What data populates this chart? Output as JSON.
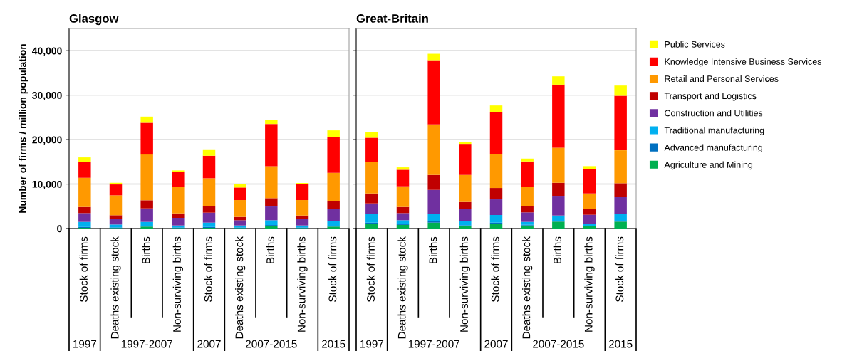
{
  "chart_data": [
    {
      "type": "bar",
      "stacked": true,
      "title": "Glasgow",
      "ylabel": "Number of firms / million population",
      "categories": [
        "Stock of firms",
        "Deaths existing stock",
        "Births",
        "Non-surviving births",
        "Stock of firms",
        "Deaths existing stock",
        "Births",
        "Non-surviving births",
        "Stock of firms"
      ],
      "annotations": [
        "1997",
        "1997-2007",
        "2007",
        "2007-2015",
        "2015"
      ],
      "series": [
        {
          "name": "Agriculture and Mining",
          "color": "#00b050",
          "values": [
            150,
            100,
            430,
            100,
            150,
            100,
            590,
            100,
            430
          ]
        },
        {
          "name": "Advanced manufacturing",
          "color": "#0070c0",
          "values": [
            200,
            150,
            200,
            150,
            200,
            150,
            200,
            150,
            200
          ]
        },
        {
          "name": "Traditional manufacturing",
          "color": "#00b0f0",
          "values": [
            1140,
            650,
            860,
            440,
            980,
            440,
            1080,
            440,
            1130
          ]
        },
        {
          "name": "Construction and Utilities",
          "color": "#7030a0",
          "values": [
            1980,
            1230,
            3040,
            1710,
            2240,
            1180,
            3090,
            1440,
            2670
          ]
        },
        {
          "name": "Transport and Logistics",
          "color": "#c00000",
          "values": [
            1380,
            860,
            1820,
            1010,
            1440,
            740,
            1870,
            800,
            1810
          ]
        },
        {
          "name": "Retail and Personal Services",
          "color": "#ff9900",
          "values": [
            6560,
            4480,
            10290,
            5980,
            6300,
            3790,
            7200,
            3470,
            6290
          ]
        },
        {
          "name": "Knowledge Intensive Business Services",
          "color": "#ff0000",
          "values": [
            3630,
            2450,
            7150,
            3300,
            5060,
            2830,
            9490,
            3570,
            8110
          ]
        },
        {
          "name": "Public Services",
          "color": "#ffff00",
          "values": [
            960,
            370,
            1380,
            380,
            1440,
            740,
            960,
            270,
            1440
          ]
        }
      ],
      "ylim": [
        0,
        45000
      ],
      "yticks": [
        0,
        {
          "value": 10000,
          "label": "10,000"
        },
        {
          "value": 20000,
          "label": "20,000"
        },
        {
          "value": 30000,
          "label": "30,000"
        },
        {
          "value": 40000,
          "label": "40,000"
        }
      ],
      "grid": "y",
      "legend": "right"
    },
    {
      "type": "bar",
      "stacked": true,
      "title": "Great-Britain",
      "categories": [
        "Stock of firms",
        "Deaths existing stock",
        "Births",
        "Non-surviving births",
        "Stock of firms",
        "Deaths existing stock",
        "Births",
        "Non-surviving births",
        "Stock of firms"
      ],
      "annotations": [
        "1997",
        "1997-2007",
        "2007",
        "2007-2015",
        "2015"
      ],
      "series": [
        {
          "color": "#00b050",
          "values": [
            1120,
            800,
            1330,
            590,
            1120,
            690,
            1550,
            480,
            1550
          ]
        },
        {
          "color": "#0070c0",
          "values": [
            200,
            150,
            300,
            150,
            200,
            150,
            200,
            150,
            200
          ]
        },
        {
          "color": "#00b0f0",
          "values": [
            2040,
            920,
            1730,
            910,
            1720,
            650,
            1180,
            490,
            1500
          ]
        },
        {
          "color": "#7030a0",
          "values": [
            2290,
            1600,
            5330,
            2670,
            3520,
            2140,
            4430,
            1970,
            3950
          ]
        },
        {
          "color": "#c00000",
          "values": [
            2240,
            1380,
            3360,
            1650,
            2560,
            1440,
            2930,
            1280,
            2990
          ]
        },
        {
          "color": "#ff9900",
          "values": [
            7100,
            4640,
            11360,
            6080,
            7630,
            4260,
            7900,
            3520,
            7410
          ]
        },
        {
          "color": "#ff0000",
          "values": [
            5440,
            3740,
            14460,
            6990,
            9380,
            5760,
            14180,
            5500,
            12270
          ]
        },
        {
          "color": "#ffff00",
          "values": [
            1330,
            530,
            1440,
            430,
            1550,
            640,
            1870,
            640,
            2290
          ]
        }
      ],
      "ylim": [
        0,
        45000
      ],
      "yticks": [
        0,
        10000,
        20000,
        30000,
        40000
      ],
      "grid": "y",
      "tick_labels": "x"
    }
  ]
}
